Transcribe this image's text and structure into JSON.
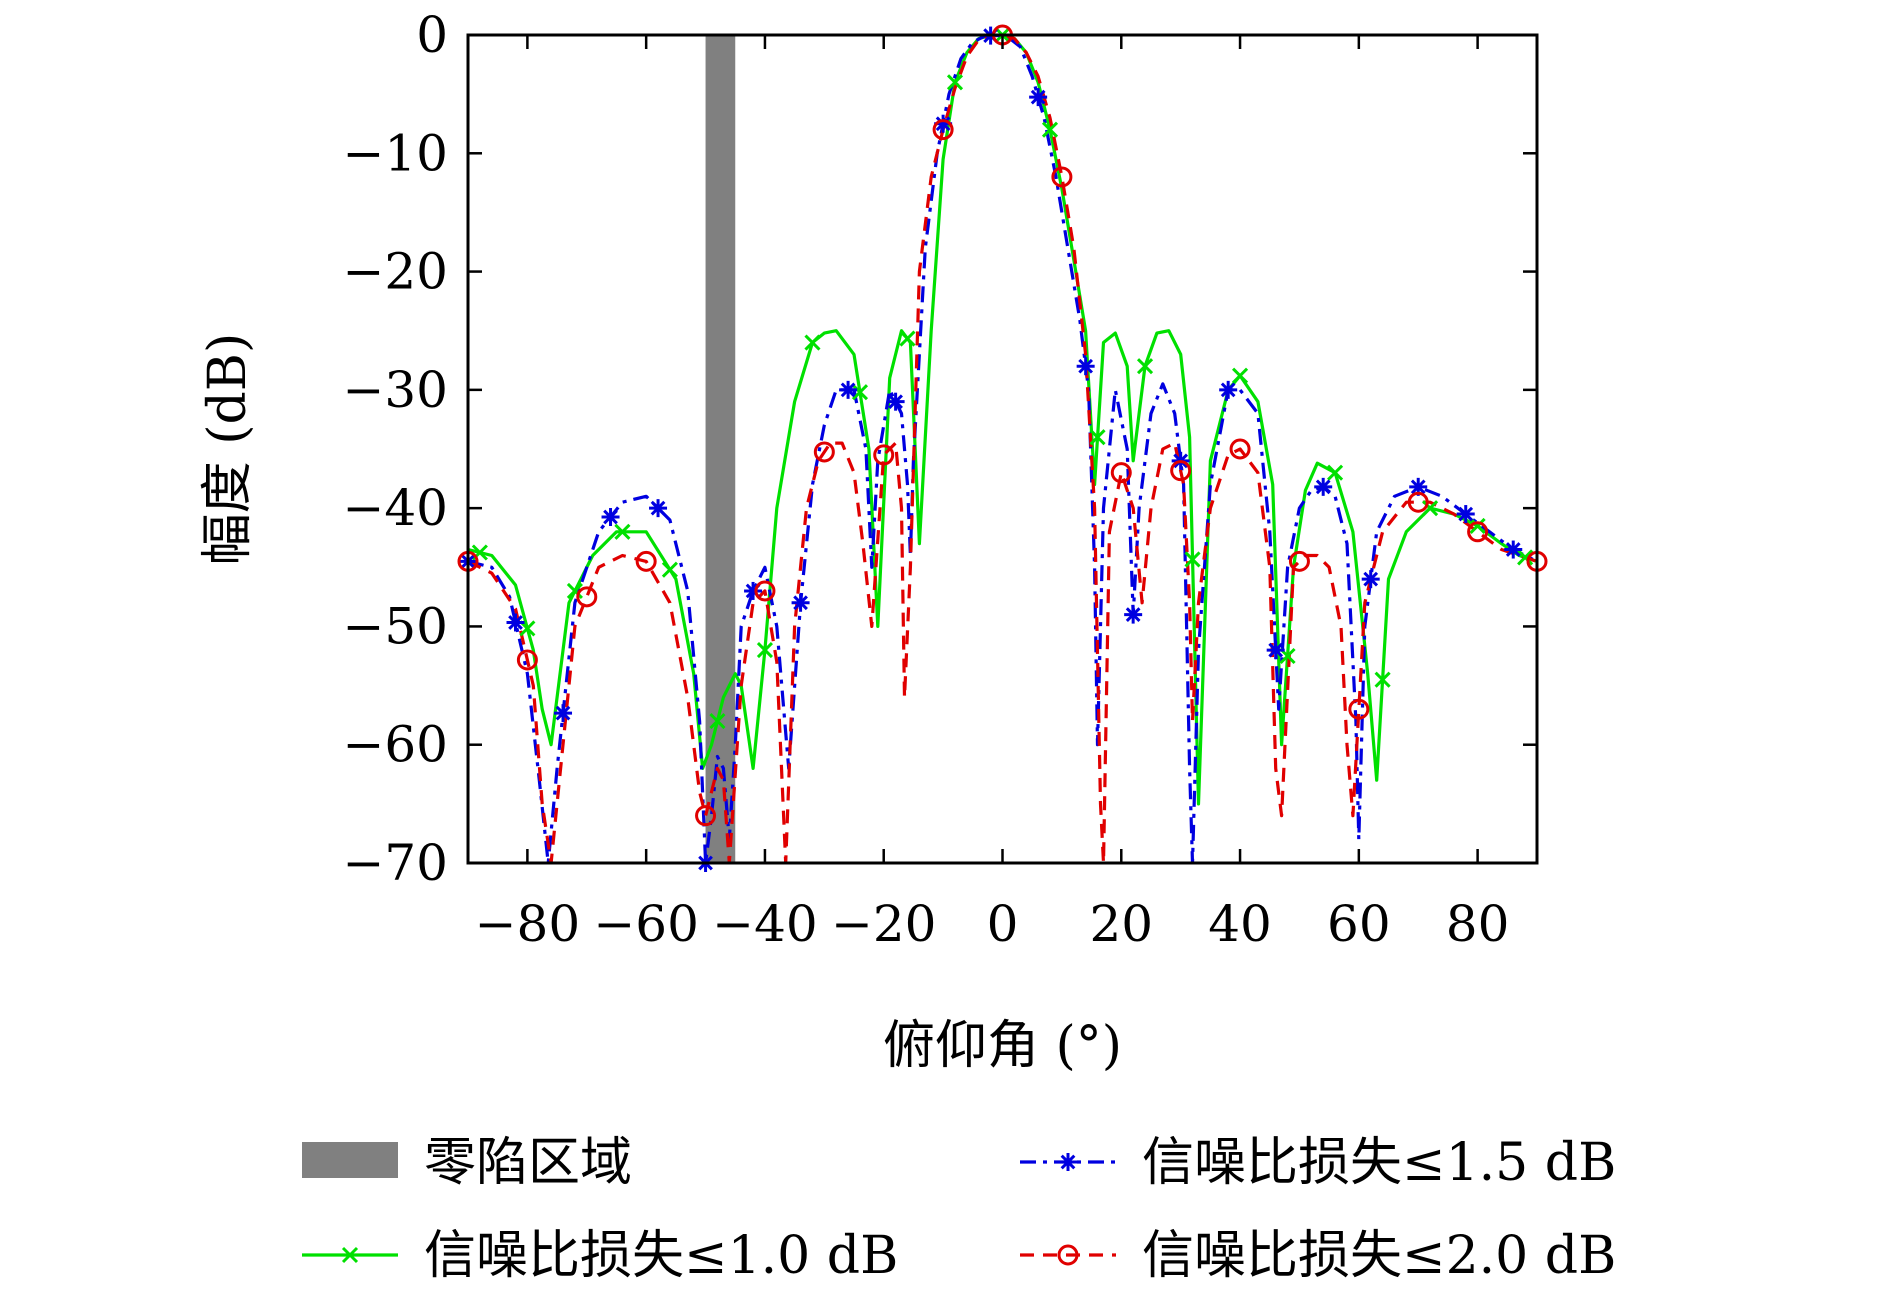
{
  "chart_data": {
    "type": "line",
    "title": "",
    "xlabel": "俯仰角 (°)",
    "ylabel": "幅度 (dB)",
    "xlim": [
      -90,
      90
    ],
    "ylim": [
      -70,
      0
    ],
    "xticks": [
      -80,
      -60,
      -40,
      -20,
      0,
      20,
      40,
      60,
      80
    ],
    "xtick_labels": [
      "−80",
      "−60",
      "−40",
      "−20",
      "0",
      "20",
      "40",
      "60",
      "80"
    ],
    "yticks": [
      0,
      -10,
      -20,
      -30,
      -40,
      -50,
      -60,
      -70
    ],
    "ytick_labels": [
      "0",
      "−10",
      "−20",
      "−30",
      "−40",
      "−50",
      "−60",
      "−70"
    ],
    "grid": false,
    "legend_position": "bottom",
    "null_region": {
      "name": "零陷区域",
      "x_range": [
        -50,
        -45
      ],
      "color": "#808080"
    },
    "series": [
      {
        "name": "信噪比损失≤1.0 dB",
        "color": "#00e000",
        "line_style": "solid",
        "marker": "x",
        "x": [
          -90,
          -86,
          -82,
          -79,
          -77.5,
          -76,
          -73,
          -69,
          -65,
          -60,
          -55,
          -52,
          -50.5,
          -49,
          -47,
          -45,
          -44,
          -42,
          -40,
          -38,
          -35,
          -32,
          -30,
          -28,
          -25,
          -22.5,
          -21,
          -19,
          -17,
          -15.5,
          -14,
          -12,
          -10,
          -8,
          -6,
          -4,
          -2,
          0,
          2,
          4,
          6,
          8,
          10,
          12,
          14,
          15.5,
          17,
          19,
          21,
          22,
          24,
          26,
          28,
          30,
          31.5,
          33,
          35,
          38,
          40,
          43,
          45.5,
          47,
          49,
          51,
          53,
          56,
          59,
          61.5,
          63,
          65,
          68,
          72,
          76,
          80,
          84,
          87,
          90
        ],
        "y": [
          -43.5,
          -44,
          -46.5,
          -52,
          -57,
          -60,
          -48,
          -44,
          -42,
          -42,
          -46,
          -54,
          -62,
          -60,
          -56,
          -54,
          -55,
          -62,
          -52,
          -40,
          -31,
          -26,
          -25.2,
          -25,
          -27,
          -35,
          -50,
          -29,
          -25,
          -26,
          -43,
          -25,
          -10.5,
          -4,
          -1.5,
          -0.3,
          -0.05,
          0,
          -0.3,
          -1.5,
          -4,
          -8,
          -13,
          -19,
          -25,
          -38,
          -26,
          -25.2,
          -28,
          -36,
          -28,
          -25.2,
          -25,
          -27,
          -34,
          -65,
          -36,
          -30,
          -28.8,
          -31,
          -38,
          -60,
          -45,
          -38.5,
          -36.2,
          -37,
          -42,
          -54,
          -63,
          -46,
          -42,
          -40,
          -40.5,
          -41.5,
          -43,
          -44,
          -44.5
        ]
      },
      {
        "name": "信噪比损失≤1.5 dB",
        "color": "#0000e0",
        "line_style": "dashdot",
        "marker": "asterisk",
        "x": [
          -90,
          -86,
          -83,
          -80,
          -78,
          -76.5,
          -75,
          -72,
          -68,
          -64,
          -60,
          -56,
          -53,
          -51,
          -50,
          -49,
          -48,
          -47,
          -46,
          -45,
          -44,
          -42,
          -40,
          -38,
          -36,
          -34,
          -32,
          -30,
          -28,
          -25,
          -23,
          -22,
          -21,
          -19,
          -17,
          -16,
          -15.5,
          -15,
          -13,
          -11,
          -9,
          -7,
          -5,
          -3,
          -1,
          0,
          1,
          3,
          5,
          7,
          9,
          11,
          13,
          14.5,
          15.5,
          16,
          17,
          19,
          21,
          22,
          23,
          25,
          27,
          29,
          30.5,
          31.5,
          32,
          33,
          35,
          38,
          40,
          43,
          45,
          46.5,
          48,
          50,
          52,
          54,
          56,
          58,
          59.5,
          60,
          61,
          63,
          66,
          70,
          74,
          78,
          82,
          86,
          90
        ],
        "y": [
          -44.5,
          -45,
          -47.5,
          -54,
          -63,
          -70,
          -62,
          -48,
          -42,
          -39.5,
          -39,
          -41,
          -47,
          -58,
          -70,
          -66,
          -61,
          -62,
          -68,
          -60,
          -50,
          -47,
          -45,
          -50,
          -62,
          -48,
          -38,
          -33,
          -30,
          -30,
          -35,
          -45,
          -36,
          -30,
          -32,
          -38,
          -44,
          -36,
          -18,
          -10,
          -5,
          -2,
          -0.6,
          -0.1,
          0,
          0,
          -0.2,
          -1,
          -3.5,
          -7,
          -12,
          -18,
          -24,
          -30,
          -45,
          -60,
          -40,
          -30,
          -35,
          -49,
          -40,
          -32,
          -29.5,
          -32,
          -38,
          -62,
          -70,
          -52,
          -38,
          -30,
          -30,
          -32,
          -42,
          -57,
          -45,
          -40,
          -38.5,
          -38.2,
          -39,
          -43,
          -58,
          -68,
          -50,
          -42,
          -39,
          -38.2,
          -39,
          -40.5,
          -42,
          -43.5,
          -44.5
        ]
      },
      {
        "name": "信噪比损失≤2.0 dB",
        "color": "#e00000",
        "line_style": "dashed",
        "marker": "circle",
        "x": [
          -90,
          -86,
          -82,
          -79,
          -77.5,
          -76,
          -72,
          -68,
          -64,
          -60,
          -56,
          -53,
          -51,
          -50,
          -49,
          -48,
          -47,
          -46,
          -44,
          -42,
          -40,
          -38,
          -36.5,
          -35,
          -33,
          -31,
          -29,
          -27,
          -25,
          -23.5,
          -22,
          -20,
          -18,
          -17,
          -16.5,
          -15.5,
          -14,
          -12,
          -10,
          -8,
          -6,
          -4,
          -2,
          0,
          2,
          4,
          6,
          8,
          10,
          12,
          14,
          15.5,
          16.5,
          17,
          18,
          20,
          22,
          23.5,
          25,
          27,
          29,
          30.5,
          31.5,
          32,
          33,
          35,
          38,
          40,
          43,
          45,
          46,
          47,
          49,
          51,
          53,
          55,
          57,
          58,
          59,
          61,
          64,
          68,
          72,
          76,
          80,
          84,
          87,
          90
        ],
        "y": [
          -44.5,
          -45.5,
          -48.5,
          -55,
          -65,
          -70,
          -50,
          -45,
          -44,
          -44.5,
          -48,
          -56,
          -64,
          -66,
          -64,
          -62,
          -63,
          -70,
          -55,
          -48,
          -47,
          -53,
          -70,
          -50,
          -40,
          -36,
          -34.5,
          -34.5,
          -37,
          -43,
          -50,
          -35.5,
          -34.5,
          -40,
          -56,
          -45,
          -20,
          -12,
          -8,
          -4.5,
          -1.8,
          -0.4,
          0,
          0,
          -0.3,
          -1.5,
          -3.5,
          -7,
          -12,
          -18,
          -27,
          -40,
          -65,
          -70,
          -42,
          -37,
          -40,
          -48,
          -40,
          -35,
          -34.5,
          -38,
          -48,
          -58,
          -48,
          -40,
          -35.5,
          -35,
          -37,
          -45,
          -62,
          -66,
          -45,
          -44,
          -44,
          -45,
          -50,
          -60,
          -66,
          -48,
          -42,
          -39.5,
          -39.5,
          -40.5,
          -42,
          -43.5,
          -44,
          -44.5
        ]
      }
    ]
  }
}
